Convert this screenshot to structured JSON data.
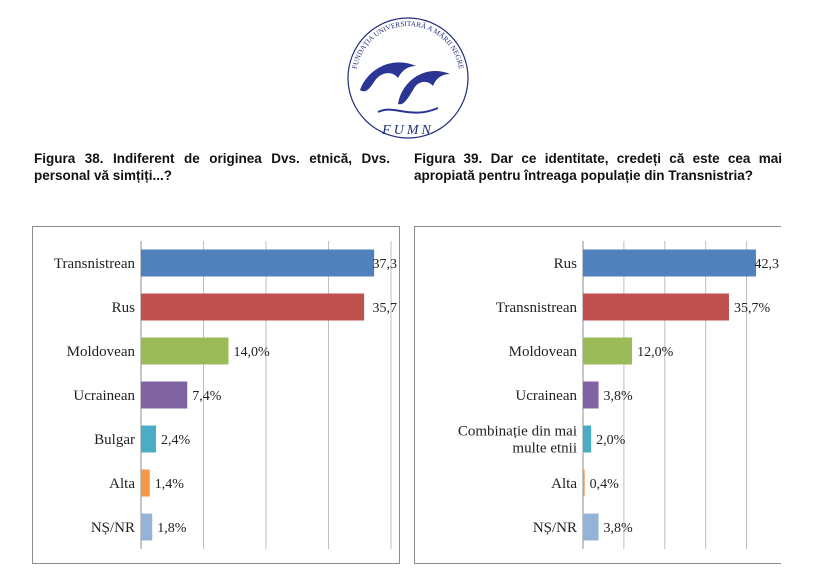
{
  "logo": {
    "arc_text": "FUNDAȚIA UNIVERSITARĂ A MĂRII NEGRE",
    "monogram": "FUMN"
  },
  "figure38": {
    "title": "Figura 38. Indiferent de originea Dvs. etnică, Dvs. personal vă simțiți...?"
  },
  "figure39": {
    "title": "Figura 39. Dar ce identitate, credeți că este cea mai apropiată pentru întreaga populație din Transnistria?"
  },
  "chart_data": [
    {
      "type": "bar",
      "orientation": "horizontal",
      "categories": [
        "Transnistrean",
        "Rus",
        "Moldovean",
        "Ucrainean",
        "Bulgar",
        "Alta",
        "NȘ/NR"
      ],
      "values": [
        37.3,
        35.7,
        14.0,
        7.4,
        2.4,
        1.4,
        1.8
      ],
      "data_labels": [
        "37,3",
        "35,7",
        "14,0%",
        "7,4%",
        "2,4%",
        "1,4%",
        "1,8%"
      ],
      "colors": [
        "#4f81bd",
        "#c0504d",
        "#9bbb59",
        "#8064a2",
        "#4bacc6",
        "#f79646",
        "#95b3d7"
      ],
      "xlim": [
        0,
        40
      ],
      "grid": true
    },
    {
      "type": "bar",
      "orientation": "horizontal",
      "categories": [
        "Rus",
        "Transnistrean",
        "Moldovean",
        "Ucrainean",
        "Combinație din mai multe etnii",
        "Alta",
        "NȘ/NR"
      ],
      "category_lines": [
        [
          "Rus"
        ],
        [
          "Transnistrean"
        ],
        [
          "Moldovean"
        ],
        [
          "Ucrainean"
        ],
        [
          "Combinație din mai",
          "multe etnii"
        ],
        [
          "Alta"
        ],
        [
          "NȘ/NR"
        ]
      ],
      "values": [
        42.3,
        35.7,
        12.0,
        3.8,
        2.0,
        0.4,
        3.8
      ],
      "data_labels": [
        "42,3",
        "35,7%",
        "12,0%",
        "3,8%",
        "2,0%",
        "0,4%",
        "3,8%"
      ],
      "colors": [
        "#4f81bd",
        "#c0504d",
        "#9bbb59",
        "#8064a2",
        "#4bacc6",
        "#f79646",
        "#95b3d7"
      ],
      "xlim": [
        0,
        45
      ],
      "grid": true
    }
  ]
}
